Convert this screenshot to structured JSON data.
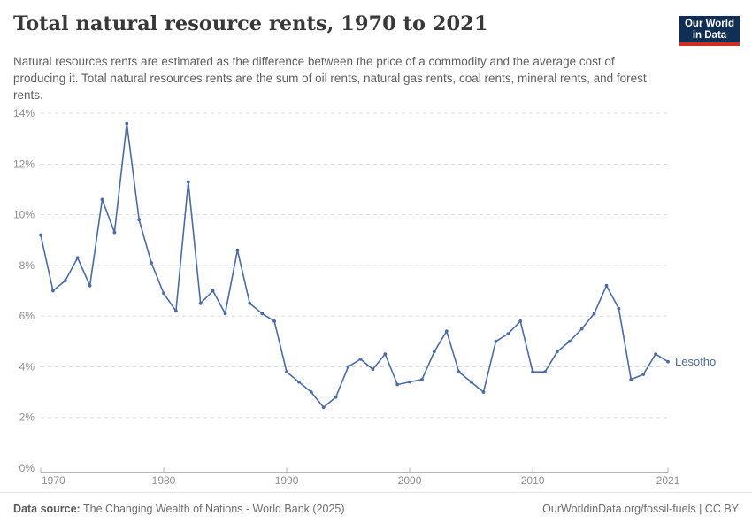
{
  "header": {
    "title": "Total natural resource rents, 1970 to 2021",
    "subtitle": "Natural resources rents are estimated as the difference between the price of a commodity and the average cost of producing it. Total natural resources rents are the sum of oil rents, natural gas rents, coal rents, mineral rents, and forest rents.",
    "logo": {
      "line1": "Our World",
      "line2": "in Data",
      "bg": "#112f55",
      "bar": "#d22e21"
    }
  },
  "chart_data": {
    "type": "line",
    "title": "Total natural resource rents, 1970 to 2021",
    "xlabel": "",
    "ylabel": "",
    "xlim": [
      1970,
      2021
    ],
    "ylim": [
      0,
      14
    ],
    "grid": "horizontal-dashed",
    "legend_position": "end-of-line-label",
    "x_ticks": [
      1970,
      1980,
      1990,
      2000,
      2010,
      2021
    ],
    "y_ticks": [
      0,
      2,
      4,
      6,
      8,
      10,
      12,
      14
    ],
    "y_tick_suffix": "%",
    "x": [
      1970,
      1971,
      1972,
      1973,
      1974,
      1975,
      1976,
      1977,
      1978,
      1979,
      1980,
      1981,
      1982,
      1983,
      1984,
      1985,
      1986,
      1987,
      1988,
      1989,
      1990,
      1991,
      1992,
      1993,
      1994,
      1995,
      1996,
      1997,
      1998,
      1999,
      2000,
      2001,
      2002,
      2003,
      2004,
      2005,
      2006,
      2007,
      2008,
      2009,
      2010,
      2011,
      2012,
      2013,
      2014,
      2015,
      2016,
      2017,
      2018,
      2019,
      2020,
      2021
    ],
    "series": [
      {
        "name": "Lesotho",
        "color": "#4a6ba6",
        "values": [
          9.2,
          7.0,
          7.4,
          8.3,
          7.2,
          10.6,
          9.3,
          13.6,
          9.8,
          8.1,
          6.9,
          6.2,
          11.3,
          6.5,
          7.0,
          6.1,
          8.6,
          6.5,
          6.1,
          5.8,
          3.8,
          3.4,
          3.0,
          2.4,
          2.8,
          4.0,
          4.3,
          3.9,
          4.5,
          3.3,
          3.4,
          3.5,
          4.6,
          5.4,
          3.8,
          3.4,
          3.0,
          5.0,
          5.3,
          5.8,
          3.8,
          3.8,
          4.6,
          5.0,
          5.5,
          6.1,
          7.2,
          6.3,
          3.5,
          3.7,
          4.5,
          4.2
        ]
      }
    ]
  },
  "footer": {
    "source_label": "Data source:",
    "source_text": " The Changing Wealth of Nations - World Bank (2025)",
    "rights": "OurWorldinData.org/fossil-fuels | CC BY"
  },
  "colors": {
    "line": "#4a6ba6",
    "grid": "#dcdcdc",
    "axis": "#b3b3b3",
    "tick_text": "#8f8f8f",
    "entity_label": "#4c6a9c"
  }
}
